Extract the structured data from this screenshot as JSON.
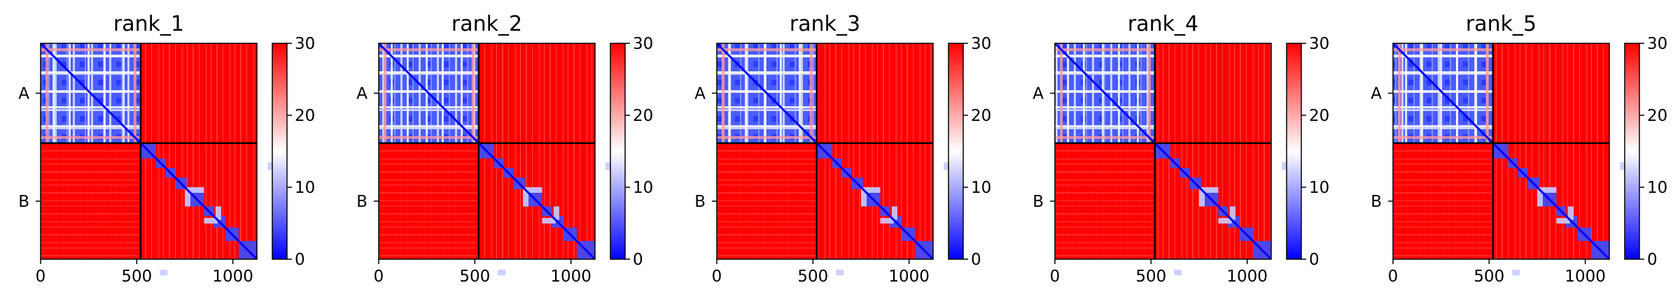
{
  "chart_data": [
    {
      "type": "heatmap",
      "title": "rank_1",
      "x_ticks": [
        0,
        500,
        1000
      ],
      "y_chain_labels": [
        "A",
        "B"
      ],
      "chain_boundary": 520,
      "sequence_length": 1125,
      "colorbar": {
        "ticks": [
          0,
          10,
          20,
          30
        ],
        "range": [
          0,
          30
        ],
        "colors": [
          "#0000ff",
          "#ffffff",
          "#ff0000"
        ]
      }
    },
    {
      "type": "heatmap",
      "title": "rank_2",
      "x_ticks": [
        0,
        500,
        1000
      ],
      "y_chain_labels": [
        "A",
        "B"
      ],
      "chain_boundary": 520,
      "sequence_length": 1125,
      "colorbar": {
        "ticks": [
          0,
          10,
          20,
          30
        ],
        "range": [
          0,
          30
        ],
        "colors": [
          "#0000ff",
          "#ffffff",
          "#ff0000"
        ]
      }
    },
    {
      "type": "heatmap",
      "title": "rank_3",
      "x_ticks": [
        0,
        500,
        1000
      ],
      "y_chain_labels": [
        "A",
        "B"
      ],
      "chain_boundary": 520,
      "sequence_length": 1125,
      "colorbar": {
        "ticks": [
          0,
          10,
          20,
          30
        ],
        "range": [
          0,
          30
        ],
        "colors": [
          "#0000ff",
          "#ffffff",
          "#ff0000"
        ]
      }
    },
    {
      "type": "heatmap",
      "title": "rank_4",
      "x_ticks": [
        0,
        500,
        1000
      ],
      "y_chain_labels": [
        "A",
        "B"
      ],
      "chain_boundary": 520,
      "sequence_length": 1125,
      "colorbar": {
        "ticks": [
          0,
          10,
          20,
          30
        ],
        "range": [
          0,
          30
        ],
        "colors": [
          "#0000ff",
          "#ffffff",
          "#ff0000"
        ]
      }
    },
    {
      "type": "heatmap",
      "title": "rank_5",
      "x_ticks": [
        0,
        500,
        1000
      ],
      "y_chain_labels": [
        "A",
        "B"
      ],
      "chain_boundary": 520,
      "sequence_length": 1125,
      "colorbar": {
        "ticks": [
          0,
          10,
          20,
          30
        ],
        "range": [
          0,
          30
        ],
        "colors": [
          "#0000ff",
          "#ffffff",
          "#ff0000"
        ]
      }
    }
  ]
}
